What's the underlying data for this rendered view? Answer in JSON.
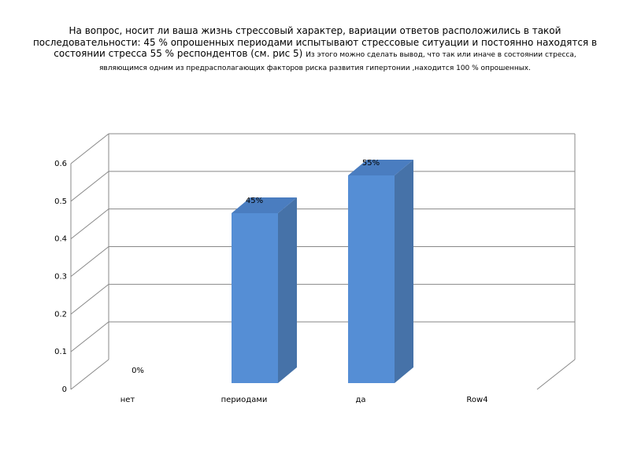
{
  "chart_data": {
    "type": "bar3d",
    "title": "На вопрос, носит ли ваша жизнь стрессовый характер,  вариации ответов расположились в такой последовательности:  45 % опрошенных периодами испытывают стрессовые ситуации  и постоянно находятся в состоянии стресса 55 % респондентов (см. рис 5)",
    "subtitle": "Из этого можно сделать вывод, что так или иначе в состоянии стресса, являющимся одним из предрасполагающих факторов риска развития гипертонии ,находится 100 % опрошенных.",
    "categories": [
      "нет",
      "периодами",
      "да",
      "Row4"
    ],
    "values": [
      0,
      0.45,
      0.55,
      null
    ],
    "value_labels": [
      "0%",
      "45%",
      "55%",
      null
    ],
    "color": "#558ed5",
    "ylim": [
      0,
      0.6
    ],
    "yticks": [
      0,
      0.1,
      0.2,
      0.3,
      0.4,
      0.5,
      0.6
    ],
    "grid": true
  }
}
